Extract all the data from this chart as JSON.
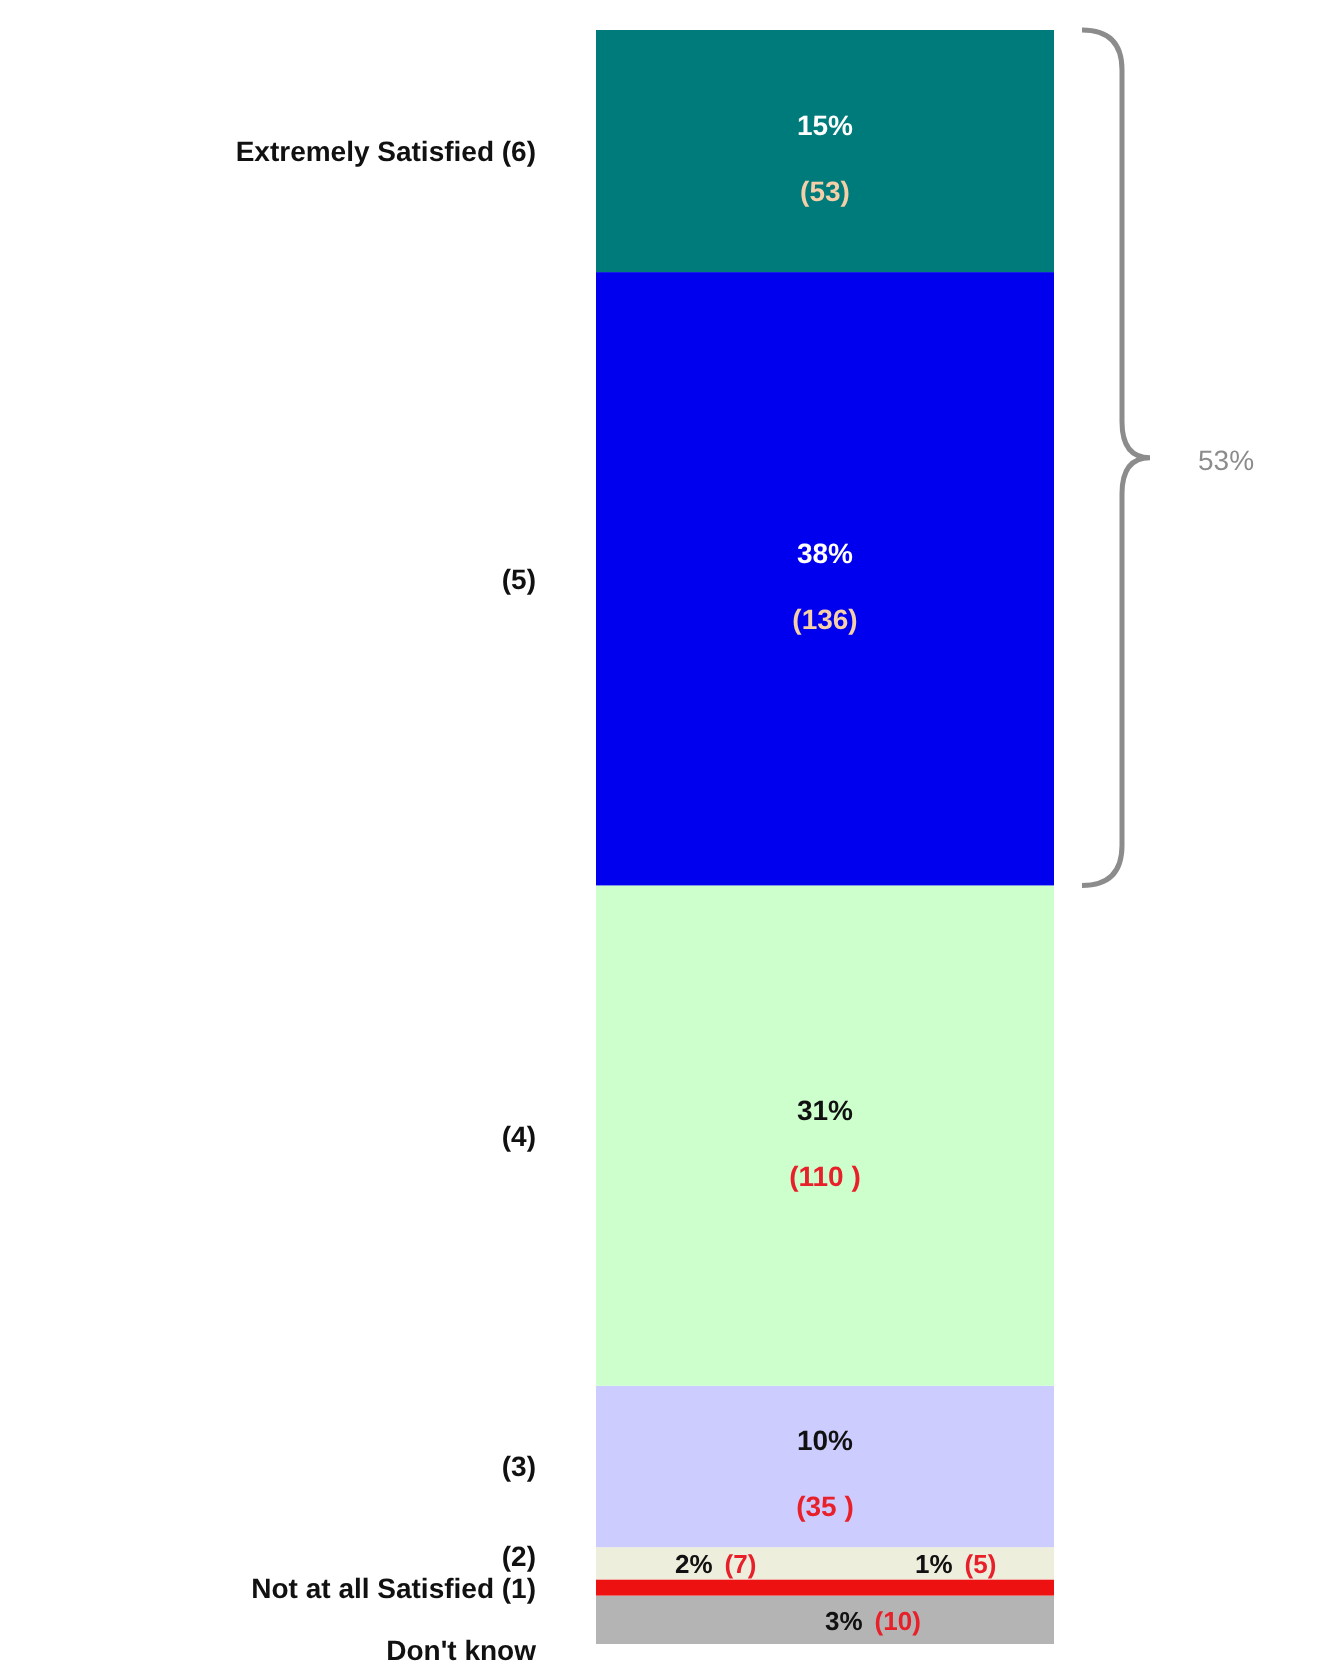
{
  "chart_data": {
    "type": "bar",
    "stacked": true,
    "categories": [
      null
    ],
    "ylim": [
      0,
      100
    ],
    "series": [
      {
        "name": "Don't know",
        "color": "#b4b4b4",
        "values": [
          3
        ],
        "value_labels": [
          "3%\n(10)"
        ]
      },
      {
        "name": "Not at all Satisfied (1)",
        "color": "#ee1111",
        "values": [
          1
        ],
        "value_labels": [
          "1%\n(5)"
        ]
      },
      {
        "name": "(2)",
        "color": "#eeeedd",
        "values": [
          2
        ],
        "value_labels": [
          "2%\n(7)"
        ]
      },
      {
        "name": "(3)",
        "color": "#ccccff",
        "values": [
          10
        ],
        "value_labels": [
          "10%\n(35 )"
        ]
      },
      {
        "name": "(4)",
        "color": "#ccffcc",
        "values": [
          31
        ],
        "value_labels": [
          "31%\n(110 )"
        ]
      },
      {
        "name": "(5)",
        "color": "#0000ee",
        "values": [
          38
        ],
        "value_labels": [
          "38%\n(136)"
        ]
      },
      {
        "name": "Extremely Satisfied (6)",
        "color": "#007b7b",
        "values": [
          15
        ],
        "value_labels": [
          "15%\n(53)"
        ]
      }
    ],
    "annotations": [
      "53%"
    ]
  }
}
